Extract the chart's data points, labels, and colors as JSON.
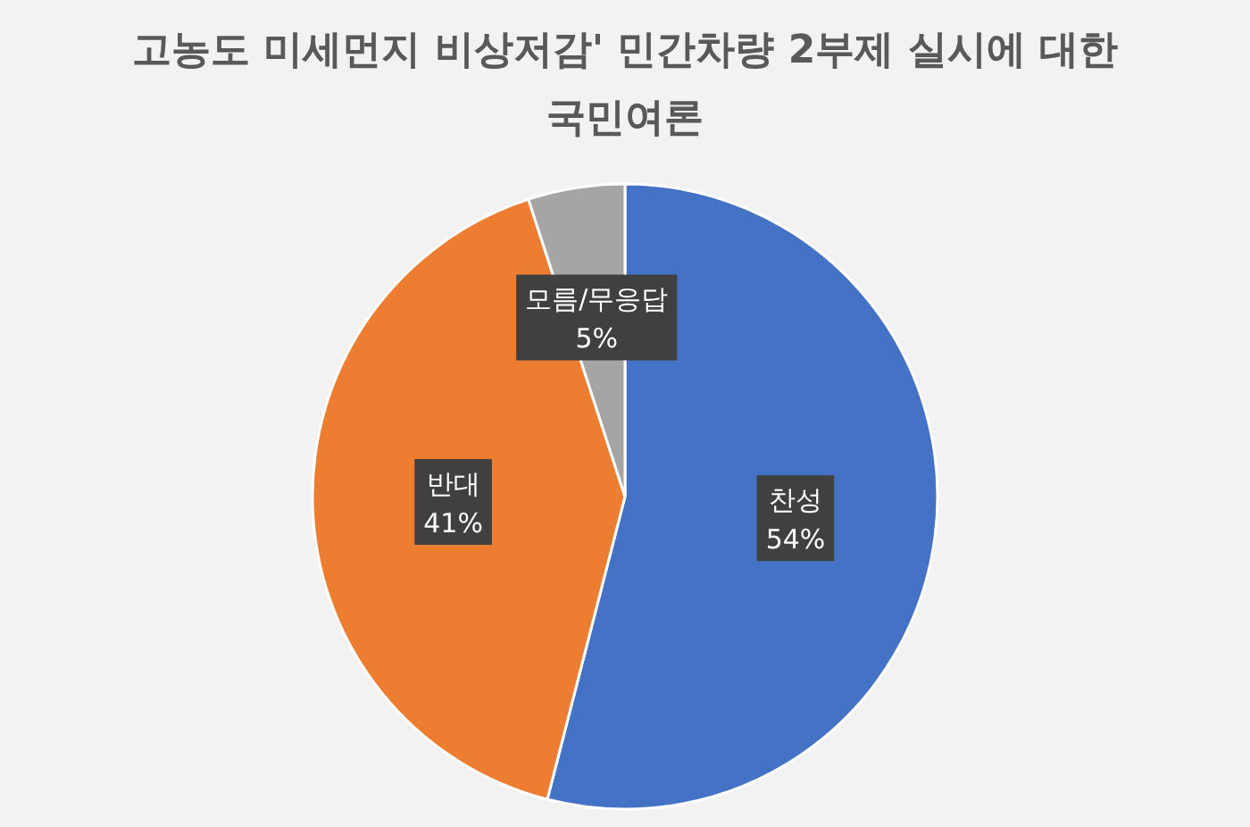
{
  "chart_data": {
    "type": "pie",
    "title": "고농도 미세먼지 비상저감' 민간차량 2부제 실시에 대한 국민여론",
    "categories": [
      "찬성",
      "반대",
      "모름/무응답"
    ],
    "values": [
      54,
      41,
      5
    ],
    "colors": [
      "#4472c4",
      "#ed7d31",
      "#a5a5a5"
    ],
    "value_labels": [
      "54%",
      "41%",
      "5%"
    ]
  }
}
